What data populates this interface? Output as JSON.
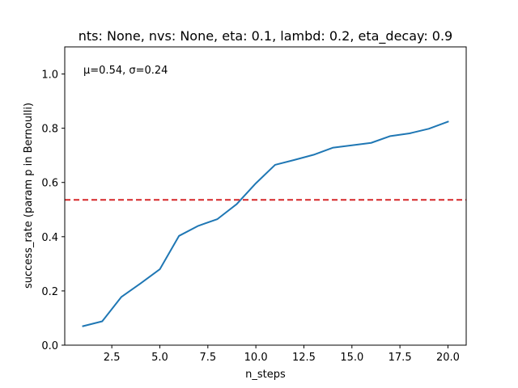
{
  "chart_data": {
    "type": "line",
    "title": "nts: None, nvs: None, eta: 0.1, lambd: 0.2, eta_decay: 0.9",
    "xlabel": "n_steps",
    "ylabel": "success_rate (param p in Bernoulli)",
    "xlim": [
      0.05,
      20.95
    ],
    "ylim": [
      0.0,
      1.1
    ],
    "xticks": [
      2.5,
      5.0,
      7.5,
      10.0,
      12.5,
      15.0,
      17.5,
      20.0
    ],
    "xtick_labels": [
      "2.5",
      "5.0",
      "7.5",
      "10.0",
      "12.5",
      "15.0",
      "17.5",
      "20.0"
    ],
    "yticks": [
      0.0,
      0.2,
      0.4,
      0.6,
      0.8,
      1.0
    ],
    "ytick_labels": [
      "0.0",
      "0.2",
      "0.4",
      "0.6",
      "0.8",
      "1.0"
    ],
    "grid": false,
    "annotation": "μ=0.54, σ=0.24",
    "series": [
      {
        "color": "#1f77b4",
        "x": [
          1,
          2,
          3,
          4,
          5,
          6,
          7,
          8,
          9,
          10,
          11,
          12,
          13,
          14,
          15,
          16,
          17,
          18,
          19,
          20
        ],
        "values": [
          0.07,
          0.088,
          0.178,
          0.228,
          0.28,
          0.403,
          0.44,
          0.465,
          0.52,
          0.597,
          0.665,
          0.683,
          0.702,
          0.728,
          0.737,
          0.746,
          0.771,
          0.781,
          0.798,
          0.824
        ]
      }
    ],
    "reference_line": {
      "y": 0.536,
      "color": "#d62728",
      "style": "dashed"
    }
  }
}
